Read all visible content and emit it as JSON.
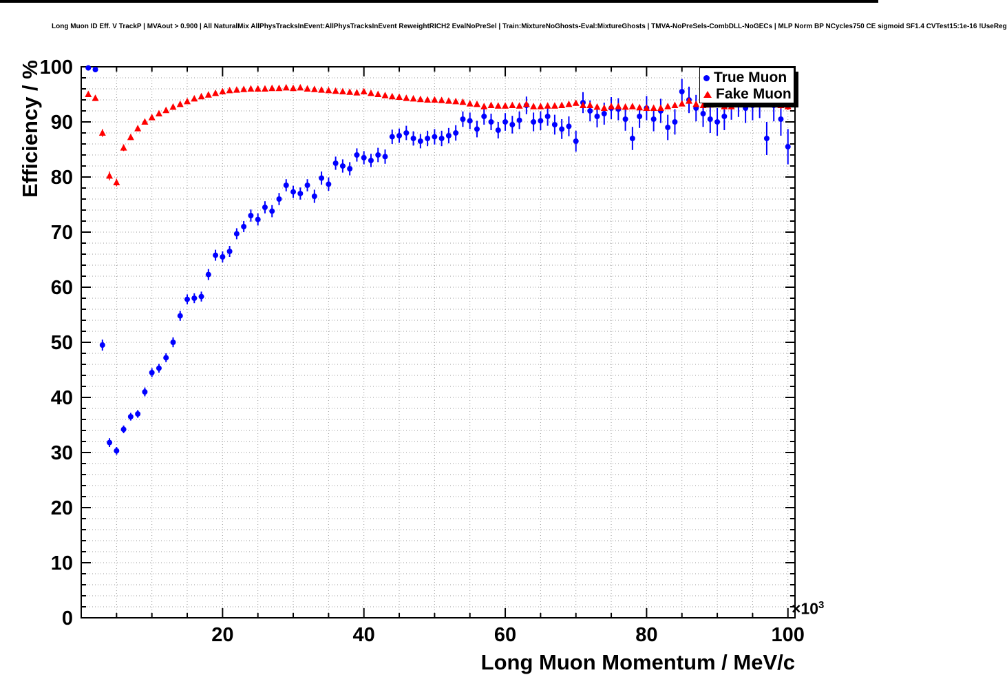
{
  "chart_data": {
    "type": "scatter",
    "title": "Long Muon ID Eff. V TrackP | MVAout > 0.900 | All NaturalMix AllPhysTracksInEvent:AllPhysTracksInEvent ReweightRICH2 EvalNoPreSel | Train:MixtureNoGhosts-Eval:MixtureGhosts | TMVA-NoPreSels-CombDLL-NoGECs | MLP Norm BP NCycles750 CE sigmoid SF1.4 CVTest15:1e-16 !UseReg",
    "xlabel": "Long Muon Momentum / MeV/c",
    "ylabel": "Efficiency / %",
    "x_exponent": {
      "base": "×10",
      "power": "3"
    },
    "xlim": [
      0,
      101
    ],
    "ylim": [
      0,
      100
    ],
    "xticks": [
      20,
      40,
      60,
      80,
      100
    ],
    "yticks": [
      0,
      10,
      20,
      30,
      40,
      50,
      60,
      70,
      80,
      90,
      100
    ],
    "grid": {
      "x_step": 5,
      "y_step": 2,
      "color": "#999999"
    },
    "ticks": {
      "x_minor": 5,
      "x_major": 20,
      "y_minor": 2,
      "y_major": 10
    },
    "legend_position": "top-right",
    "x_units": "x 1000 MeV/c",
    "x": [
      1,
      2,
      3,
      4,
      5,
      6,
      7,
      8,
      9,
      10,
      11,
      12,
      13,
      14,
      15,
      16,
      17,
      18,
      19,
      20,
      21,
      22,
      23,
      24,
      25,
      26,
      27,
      28,
      29,
      30,
      31,
      32,
      33,
      34,
      35,
      36,
      37,
      38,
      39,
      40,
      41,
      42,
      43,
      44,
      45,
      46,
      47,
      48,
      49,
      50,
      51,
      52,
      53,
      54,
      55,
      56,
      57,
      58,
      59,
      60,
      61,
      62,
      63,
      64,
      65,
      66,
      67,
      68,
      69,
      70,
      71,
      72,
      73,
      74,
      75,
      76,
      77,
      78,
      79,
      80,
      81,
      82,
      83,
      84,
      85,
      86,
      87,
      88,
      89,
      90,
      91,
      92,
      93,
      94,
      95,
      96,
      97,
      98,
      99,
      100
    ],
    "series": [
      {
        "name": "True Muon",
        "color": "#0000ff",
        "marker": "circle",
        "y": [
          99.8,
          99.5,
          49.5,
          31.8,
          30.3,
          34.2,
          36.5,
          37.0,
          41.0,
          44.5,
          45.3,
          47.2,
          50.0,
          54.8,
          57.8,
          58.0,
          58.3,
          62.3,
          65.8,
          65.5,
          66.5,
          69.7,
          71.0,
          73.0,
          72.3,
          74.5,
          73.8,
          76.0,
          78.5,
          77.3,
          77.0,
          78.5,
          76.5,
          79.8,
          78.7,
          82.5,
          82.0,
          81.5,
          84.0,
          83.5,
          83.0,
          84.0,
          83.7,
          87.3,
          87.5,
          88.0,
          87.0,
          86.5,
          87.0,
          87.3,
          87.0,
          87.5,
          88.0,
          90.5,
          90.2,
          88.7,
          91.0,
          90.0,
          88.5,
          90.0,
          89.5,
          90.3,
          93.0,
          90.0,
          90.2,
          91.0,
          89.5,
          88.7,
          89.2,
          86.5,
          93.5,
          92.0,
          91.0,
          91.5,
          92.5,
          92.3,
          90.5,
          87.0,
          91.0,
          92.5,
          90.5,
          92.0,
          89.0,
          90.0,
          95.5,
          94.0,
          92.5,
          91.5,
          90.5,
          90.0,
          91.0,
          93.0,
          93.5,
          92.5,
          93.0,
          93.5,
          87.0,
          93.0,
          90.5,
          85.5
        ],
        "yerr": [
          0.3,
          0.4,
          1.0,
          0.8,
          0.7,
          0.7,
          0.7,
          0.7,
          0.8,
          0.8,
          0.8,
          0.8,
          0.9,
          0.9,
          0.9,
          0.9,
          0.9,
          1.0,
          1.0,
          1.0,
          1.0,
          1.0,
          1.0,
          1.1,
          1.1,
          1.1,
          1.1,
          1.1,
          1.1,
          1.1,
          1.1,
          1.1,
          1.2,
          1.2,
          1.2,
          1.2,
          1.2,
          1.2,
          1.2,
          1.2,
          1.2,
          1.3,
          1.3,
          1.3,
          1.3,
          1.3,
          1.3,
          1.3,
          1.4,
          1.4,
          1.4,
          1.4,
          1.4,
          1.4,
          1.5,
          1.5,
          1.5,
          1.5,
          1.5,
          1.6,
          1.6,
          1.6,
          1.6,
          1.7,
          1.7,
          1.7,
          1.8,
          1.8,
          1.8,
          1.9,
          1.9,
          1.9,
          2.0,
          2.0,
          2.0,
          2.0,
          2.1,
          2.1,
          2.1,
          2.2,
          2.2,
          2.2,
          2.3,
          2.3,
          2.3,
          2.4,
          2.4,
          2.4,
          2.5,
          2.5,
          2.5,
          2.6,
          2.6,
          2.7,
          2.7,
          2.8,
          3.0,
          2.9,
          3.0,
          3.2
        ]
      },
      {
        "name": "Fake Muon",
        "color": "#ff0000",
        "marker": "triangle",
        "y": [
          95.0,
          94.3,
          88.0,
          80.2,
          79.0,
          85.3,
          87.2,
          88.8,
          90.0,
          90.8,
          91.5,
          92.1,
          92.7,
          93.2,
          93.7,
          94.2,
          94.6,
          94.9,
          95.2,
          95.5,
          95.7,
          95.8,
          95.9,
          96.0,
          96.0,
          96.0,
          96.1,
          96.1,
          96.2,
          96.1,
          96.2,
          96.0,
          95.9,
          95.8,
          95.7,
          95.6,
          95.5,
          95.4,
          95.3,
          95.5,
          95.2,
          95.0,
          94.8,
          94.6,
          94.5,
          94.3,
          94.2,
          94.1,
          94.0,
          94.0,
          93.9,
          93.8,
          93.7,
          93.6,
          93.3,
          93.2,
          92.8,
          93.0,
          92.9,
          92.9,
          93.0,
          92.9,
          93.2,
          92.8,
          92.8,
          92.9,
          92.9,
          93.0,
          93.2,
          93.4,
          93.0,
          93.0,
          92.7,
          92.5,
          92.8,
          92.8,
          92.7,
          92.8,
          92.6,
          92.5,
          92.5,
          92.5,
          92.8,
          93.0,
          93.3,
          93.8,
          93.2,
          93.0,
          93.1,
          93.2,
          92.8,
          92.8,
          93.4,
          93.5,
          93.2,
          93.2,
          93.5,
          93.5,
          93.0,
          92.8
        ],
        "yerr": [
          0.5,
          0.5,
          0.7,
          0.8,
          0.7,
          0.6,
          0.5,
          0.5,
          0.4,
          0.4,
          0.4,
          0.35,
          0.3,
          0.3,
          0.3,
          0.3,
          0.28,
          0.27,
          0.26,
          0.25,
          0.25,
          0.24,
          0.24,
          0.23,
          0.23,
          0.22,
          0.22,
          0.22,
          0.22,
          0.22,
          0.22,
          0.22,
          0.22,
          0.22,
          0.23,
          0.23,
          0.23,
          0.24,
          0.24,
          0.24,
          0.25,
          0.25,
          0.25,
          0.26,
          0.26,
          0.27,
          0.27,
          0.28,
          0.28,
          0.28,
          0.29,
          0.29,
          0.3,
          0.3,
          0.3,
          0.31,
          0.31,
          0.32,
          0.32,
          0.33,
          0.33,
          0.34,
          0.34,
          0.35,
          0.35,
          0.36,
          0.36,
          0.37,
          0.37,
          0.38,
          0.38,
          0.39,
          0.4,
          0.4,
          0.41,
          0.42,
          0.42,
          0.43,
          0.44,
          0.45,
          0.45,
          0.46,
          0.47,
          0.48,
          0.48,
          0.5,
          0.5,
          0.51,
          0.52,
          0.53,
          0.54,
          0.55,
          0.56,
          0.57,
          0.58,
          0.6,
          0.62,
          0.63,
          0.65,
          0.67
        ]
      }
    ]
  }
}
